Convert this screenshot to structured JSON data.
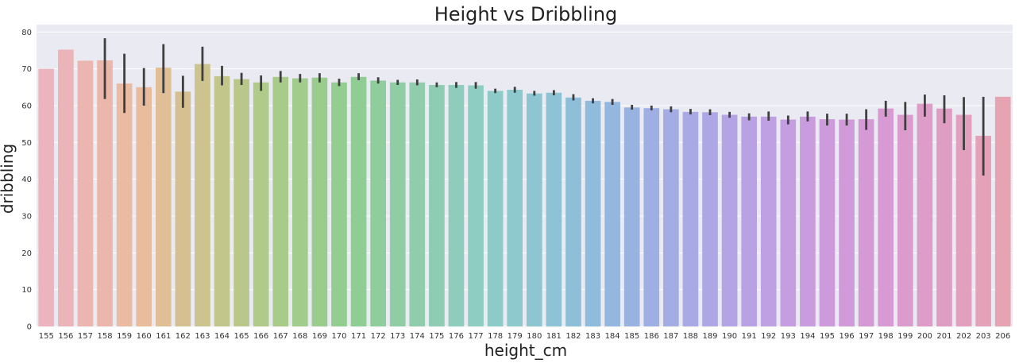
{
  "chart_data": {
    "type": "bar",
    "title": "Height vs Dribbling",
    "xlabel": "height_cm",
    "ylabel": "dribbling",
    "ylim": [
      0,
      82
    ],
    "yticks": [
      0,
      10,
      20,
      30,
      40,
      50,
      60,
      70,
      80
    ],
    "grid": true,
    "categories": [
      "155",
      "156",
      "157",
      "158",
      "159",
      "160",
      "161",
      "162",
      "163",
      "164",
      "165",
      "166",
      "167",
      "168",
      "169",
      "170",
      "171",
      "172",
      "173",
      "174",
      "175",
      "176",
      "177",
      "178",
      "179",
      "180",
      "181",
      "182",
      "183",
      "184",
      "185",
      "186",
      "187",
      "188",
      "189",
      "190",
      "191",
      "192",
      "193",
      "194",
      "195",
      "196",
      "197",
      "198",
      "199",
      "200",
      "201",
      "202",
      "203",
      "206"
    ],
    "values": [
      70,
      75.2,
      72.2,
      72.3,
      66,
      65,
      70.3,
      63.8,
      71.3,
      68,
      67.2,
      66.3,
      67.8,
      67.4,
      67.6,
      66.3,
      67.8,
      66.8,
      66.3,
      66.3,
      65.6,
      65.6,
      65.5,
      64,
      64.3,
      63.3,
      63.5,
      62.2,
      61.3,
      61,
      59.5,
      59.3,
      59,
      58.3,
      58.2,
      57.5,
      57,
      57,
      56.2,
      57,
      56.3,
      56.2,
      56.3,
      59.2,
      57.5,
      60.5,
      59.2,
      57.5,
      51.8,
      62.4
    ],
    "error_low": [
      70,
      75.2,
      72.2,
      61.8,
      58,
      60,
      63.4,
      59.4,
      66.7,
      65.5,
      65.6,
      64,
      66.3,
      66.3,
      66.3,
      65.3,
      66.9,
      66,
      65.6,
      65.5,
      65,
      64.8,
      64.6,
      63.4,
      63.5,
      62.7,
      62.8,
      61.4,
      60.6,
      60.2,
      58.9,
      58.7,
      58.2,
      57.6,
      57.4,
      56.7,
      56,
      55.9,
      54.9,
      55.7,
      54.6,
      54.6,
      53.4,
      57,
      53.3,
      57,
      55.2,
      47.9,
      41,
      62.4
    ],
    "error_high": [
      70,
      75.2,
      72.2,
      78.3,
      74.1,
      70.2,
      76.7,
      68.1,
      76,
      70.8,
      68.9,
      68.2,
      69.4,
      68.6,
      68.8,
      67.3,
      68.8,
      67.7,
      67,
      67.1,
      66.3,
      66.4,
      66.4,
      64.6,
      65.1,
      64,
      64.2,
      63.1,
      62,
      61.8,
      60.2,
      60,
      59.8,
      59.1,
      59,
      58.3,
      57.9,
      58.4,
      57.3,
      58.4,
      57.8,
      57.8,
      59,
      61.3,
      61,
      63,
      62.8,
      62.3,
      62.4,
      62.4
    ],
    "colors": [
      "#ebb4be",
      "#ebb4b8",
      "#ebb5b0",
      "#ebb7aa",
      "#ebbaa3",
      "#e8bc9c",
      "#e0be96",
      "#d6c091",
      "#ccc38e",
      "#c2c68b",
      "#b9c88a",
      "#b0ca89",
      "#a8cb8a",
      "#a1cc8b",
      "#9acd8d",
      "#94cd90",
      "#90cd94",
      "#8fcd9c",
      "#8fcda4",
      "#8fcdac",
      "#8ecdb4",
      "#8ecdbc",
      "#8ecdc2",
      "#8dcbc9",
      "#8dc9cd",
      "#8dc6d1",
      "#8dc3d5",
      "#8dbfd9",
      "#8fbbdc",
      "#94b7df",
      "#99b3e1",
      "#9eb0e3",
      "#a3ade4",
      "#a9aae5",
      "#aea7e5",
      "#b4a4e5",
      "#b9a2e4",
      "#bfa0e3",
      "#c49ee1",
      "#c99cdf",
      "#cd9bdc",
      "#d19ad9",
      "#d59ad6",
      "#d89ad2",
      "#db9bcd",
      "#de9cc8",
      "#e09dc3",
      "#e29fbe",
      "#e4a1b8",
      "#e6a3b2"
    ]
  }
}
